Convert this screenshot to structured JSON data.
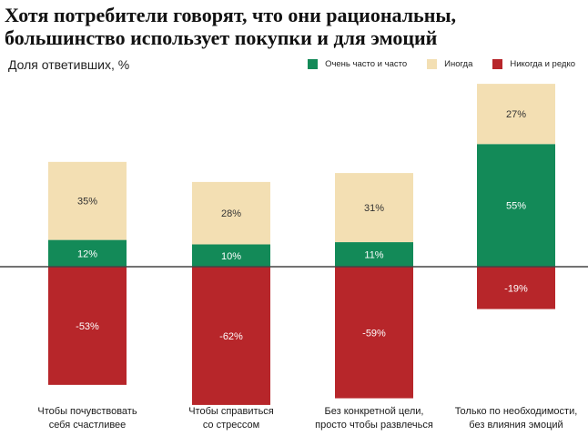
{
  "title": "Хотя потребители говорят, что они рациональны, большинство использует покупки и для эмоций",
  "subtitle": "Доля ответивших, %",
  "colors": {
    "often": "#138a58",
    "sometimes": "#f3dfb3",
    "never": "#b7262a",
    "baseline": "#444444"
  },
  "legend": [
    {
      "key": "often",
      "label": "Очень часто и часто"
    },
    {
      "key": "sometimes",
      "label": "Иногда"
    },
    {
      "key": "never",
      "label": "Никогда и редко"
    }
  ],
  "chart_data": {
    "type": "bar",
    "stacked": true,
    "title": "Хотя потребители говорят, что они рациональны, большинство использует покупки и для эмоций",
    "ylabel": "Доля ответивших, %",
    "categories": [
      [
        "Чтобы почувствовать",
        "себя счастливее"
      ],
      [
        "Чтобы справиться",
        "со стрессом"
      ],
      [
        "Без конкретной цели,",
        "просто чтобы развлечься"
      ],
      [
        "Только по необходимости,",
        "без влияния эмоций"
      ]
    ],
    "series": [
      {
        "name": "Очень часто и часто",
        "key": "often",
        "values": [
          12,
          10,
          11,
          55
        ],
        "labels": [
          "12%",
          "10%",
          "11%",
          "55%"
        ]
      },
      {
        "name": "Иногда",
        "key": "sometimes",
        "values": [
          35,
          28,
          31,
          27
        ],
        "labels": [
          "35%",
          "28%",
          "31%",
          "27%"
        ]
      },
      {
        "name": "Никогда и редко",
        "key": "never",
        "values": [
          -53,
          -62,
          -59,
          -19
        ],
        "labels": [
          "-53%",
          "-62%",
          "-59%",
          "-19%"
        ]
      }
    ],
    "ylim": [
      -62,
      82
    ]
  }
}
